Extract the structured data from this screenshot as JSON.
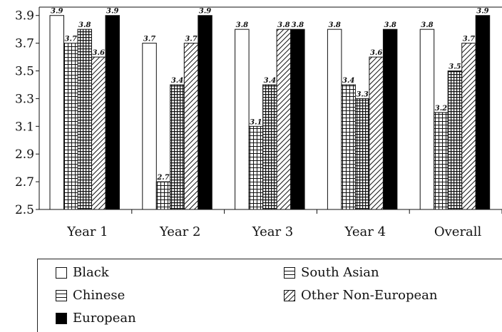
{
  "chart_data": {
    "type": "bar",
    "categories": [
      "Year 1",
      "Year 2",
      "Year 3",
      "Year 4",
      "Overall"
    ],
    "series": [
      {
        "name": "Black",
        "values": [
          3.9,
          3.7,
          3.8,
          3.8,
          3.8
        ],
        "labels": [
          "3.9",
          "3.7",
          "3.8",
          "3.8",
          "3.8"
        ],
        "pattern": "white"
      },
      {
        "name": "South Asian",
        "values": [
          3.7,
          2.7,
          3.1,
          3.4,
          3.2
        ],
        "labels": [
          "3.7",
          "2.7",
          "3.1",
          "3.4",
          "3.2"
        ],
        "pattern": "grid-wide"
      },
      {
        "name": "Chinese",
        "values": [
          3.8,
          3.4,
          3.4,
          3.3,
          3.5
        ],
        "labels": [
          "3.8",
          "3.4",
          "3.4",
          "3.3",
          "3.5"
        ],
        "pattern": "grid-dense"
      },
      {
        "name": "Other Non-European",
        "values": [
          3.6,
          3.7,
          3.8,
          3.6,
          3.7
        ],
        "labels": [
          "3.6",
          "3.7",
          "3.8",
          "3.6",
          "3.7"
        ],
        "pattern": "diagonal"
      },
      {
        "name": "European",
        "values": [
          3.9,
          3.9,
          3.8,
          3.8,
          3.9
        ],
        "labels": [
          "3.9",
          "3.9",
          "3.8",
          "3.8",
          "3.9"
        ],
        "pattern": "black"
      }
    ],
    "yticks": [
      "2.5",
      "2.7",
      "2.9",
      "3.1",
      "3.3",
      "3.5",
      "3.7",
      "3.9"
    ],
    "ylim": [
      2.5,
      3.95
    ],
    "legend": {
      "placement": "bottom",
      "items": [
        {
          "name": "Black",
          "pattern": "white"
        },
        {
          "name": "South Asian",
          "pattern": "hlines"
        },
        {
          "name": "Chinese",
          "pattern": "hlines"
        },
        {
          "name": "Other Non-European",
          "pattern": "diagonal"
        },
        {
          "name": "European",
          "pattern": "black"
        }
      ]
    },
    "colors": {
      "bar_fill": "#ffffff",
      "stroke": "#111111",
      "european": "#000000"
    }
  }
}
